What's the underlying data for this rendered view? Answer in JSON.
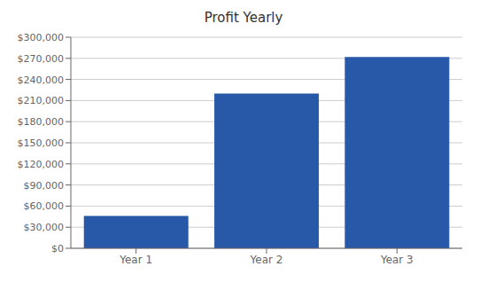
{
  "chart_data": {
    "type": "bar",
    "title": "Profit Yearly",
    "categories": [
      "Year 1",
      "Year 2",
      "Year 3"
    ],
    "values": [
      46000,
      220000,
      272000
    ],
    "color": "#2858A8",
    "ylim": [
      0,
      300000
    ],
    "yticks": [
      {
        "value": 0,
        "label": "$0"
      },
      {
        "value": 30000,
        "label": "$30,000"
      },
      {
        "value": 60000,
        "label": "$60,000"
      },
      {
        "value": 90000,
        "label": "$90,000"
      },
      {
        "value": 120000,
        "label": "$120,000"
      },
      {
        "value": 150000,
        "label": "$150,000"
      },
      {
        "value": 180000,
        "label": "$180,000"
      },
      {
        "value": 210000,
        "label": "$210,000"
      },
      {
        "value": 240000,
        "label": "$240,000"
      },
      {
        "value": 270000,
        "label": "$270,000"
      },
      {
        "value": 300000,
        "label": "$300,000"
      }
    ],
    "grid": true
  }
}
